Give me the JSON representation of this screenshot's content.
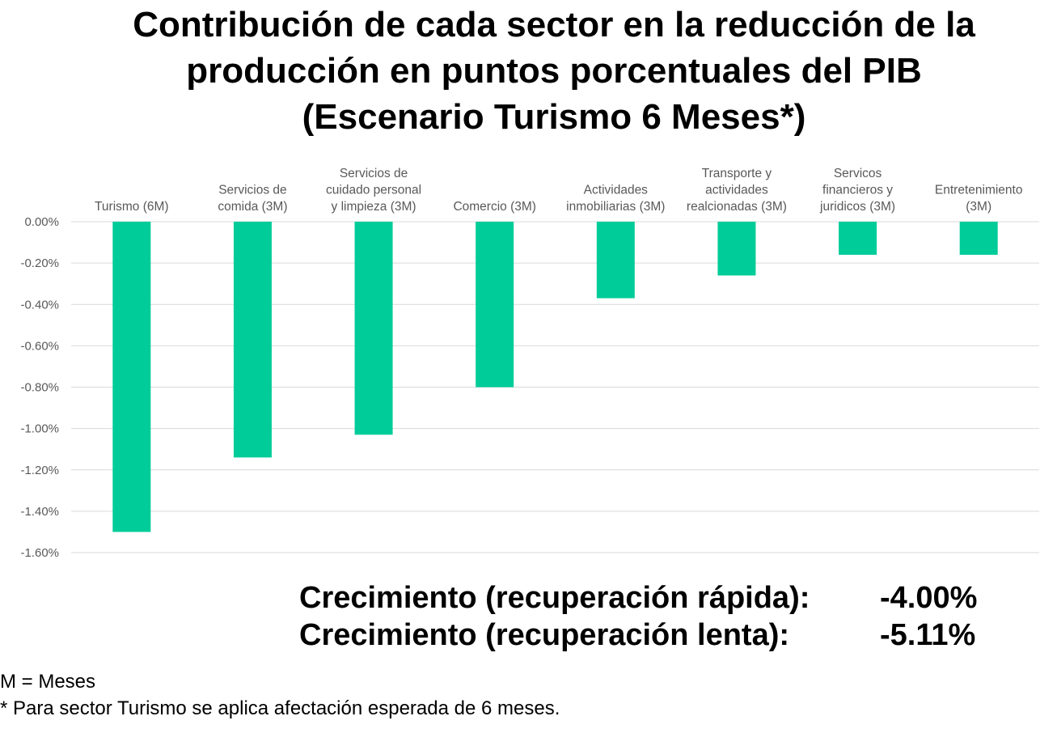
{
  "title_lines": [
    "Contribución de cada sector en la reducción de la",
    "producción en puntos porcentuales del PIB",
    "(Escenario Turismo 6 Meses*)"
  ],
  "chart_data": {
    "type": "bar",
    "orientation": "vertical",
    "categories": [
      [
        "Turismo (6M)"
      ],
      [
        "Servicios de",
        "comida (3M)"
      ],
      [
        "Servicios de",
        "cuidado personal",
        "y limpieza (3M)"
      ],
      [
        "Comercio (3M)"
      ],
      [
        "Actividades",
        "inmobiliarias (3M)"
      ],
      [
        "Transporte y",
        "actividades",
        "realcionadas (3M)"
      ],
      [
        "Servicos",
        "financieros y",
        "juridicos (3M)"
      ],
      [
        "Entretenimiento",
        "(3M)"
      ]
    ],
    "values": [
      -1.5,
      -1.14,
      -1.03,
      -0.8,
      -0.37,
      -0.26,
      -0.16,
      -0.16
    ],
    "ylim": [
      -1.6,
      0.0
    ],
    "yticks": [
      0.0,
      -0.2,
      -0.4,
      -0.6,
      -0.8,
      -1.0,
      -1.2,
      -1.4,
      -1.6
    ],
    "ytick_labels": [
      "0.00%",
      "-0.20%",
      "-0.40%",
      "-0.60%",
      "-0.80%",
      "-1.00%",
      "-1.20%",
      "-1.40%",
      "-1.60%"
    ],
    "category_labels_position": "top",
    "grid": true,
    "bar_color": "#00cc99",
    "grid_color": "#d9d9d9"
  },
  "summary": {
    "fast_label": "Crecimiento (recuperación rápida):",
    "fast_value": "-4.00%",
    "slow_label": "Crecimiento (recuperación lenta):",
    "slow_value": "-5.11%"
  },
  "notes": {
    "line1": "M = Meses",
    "line2": "* Para sector Turismo se aplica afectación esperada de 6 meses."
  }
}
